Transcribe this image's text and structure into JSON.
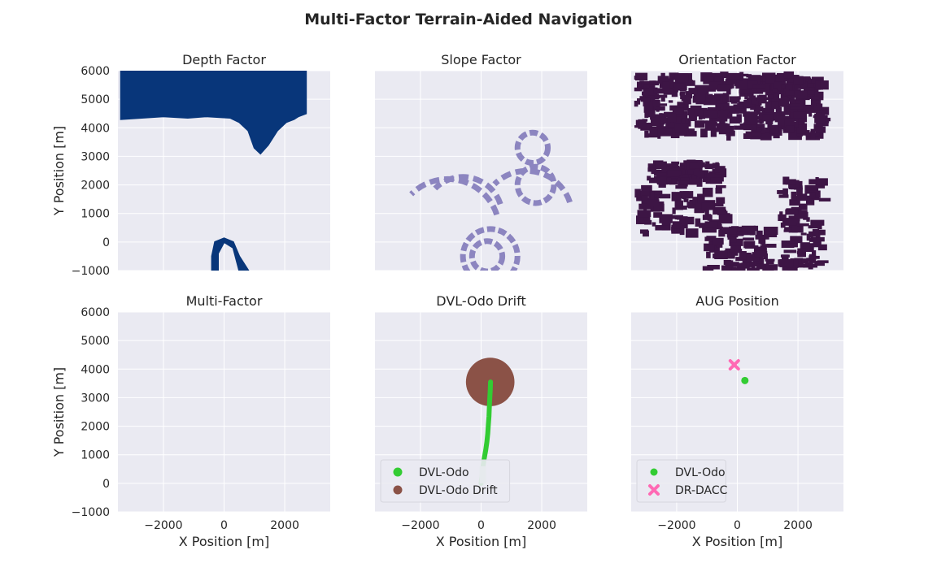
{
  "figure_title": "Multi-Factor Terrain-Aided Navigation",
  "colors": {
    "panel_bg": "#EAEAF2",
    "grid": "#FFFFFF",
    "depth": "#08367A",
    "slope": "#8C85C0",
    "orientation": "#3D1545",
    "dvl_odo": "#33CC33",
    "drift": "#8B5247",
    "dr_dacc": "#FF69B4"
  },
  "axes": {
    "xlabel": "X Position [m]",
    "ylabel": "Y Position [m]",
    "xticks": [
      -2000,
      0,
      2000
    ],
    "xtick_labels": [
      "−2000",
      "0",
      "2000"
    ],
    "yticks": [
      -1000,
      0,
      1000,
      2000,
      3000,
      4000,
      5000,
      6000
    ],
    "ytick_labels": [
      "−1000",
      "0",
      "1000",
      "2000",
      "3000",
      "4000",
      "5000",
      "6000"
    ],
    "xlim": [
      -3500,
      3500
    ],
    "ylim": [
      -1000,
      6000
    ]
  },
  "chart_data": [
    {
      "type": "heatmap",
      "title": "Depth Factor",
      "regions": [
        {
          "label": "north-plateau",
          "polygon": [
            [
              -3400,
              6000
            ],
            [
              2700,
              6000
            ],
            [
              2700,
              4500
            ],
            [
              2450,
              4400
            ],
            [
              2300,
              4300
            ],
            [
              2050,
              4200
            ],
            [
              1750,
              3900
            ],
            [
              1450,
              3400
            ],
            [
              1200,
              3100
            ],
            [
              1000,
              3300
            ],
            [
              800,
              3900
            ],
            [
              500,
              4200
            ],
            [
              200,
              4350
            ],
            [
              -600,
              4400
            ],
            [
              -1200,
              4350
            ],
            [
              -2000,
              4400
            ],
            [
              -3400,
              4300
            ]
          ]
        },
        {
          "label": "south-ring",
          "polygon": [
            [
              -400,
              -1000
            ],
            [
              -400,
              -500
            ],
            [
              -300,
              0
            ],
            [
              0,
              130
            ],
            [
              300,
              0
            ],
            [
              500,
              -500
            ],
            [
              800,
              -1000
            ],
            [
              500,
              -1000
            ],
            [
              300,
              -200
            ],
            [
              0,
              0
            ],
            [
              -200,
              -400
            ],
            [
              -200,
              -1000
            ]
          ]
        }
      ]
    },
    {
      "type": "heatmap",
      "title": "Slope Factor",
      "features": [
        {
          "label": "ring",
          "cx": 1700,
          "cy": 3300,
          "r": 500
        },
        {
          "label": "ring",
          "cx": 1800,
          "cy": 2000,
          "r": 600
        },
        {
          "label": "ring",
          "cx": 300,
          "cy": -500,
          "r": 900
        },
        {
          "label": "ring",
          "cx": 200,
          "cy": -500,
          "r": 500
        },
        {
          "label": "arc",
          "cx": -600,
          "cy": 900,
          "r": 1300
        },
        {
          "label": "arc",
          "cx": -1100,
          "cy": 400,
          "r": 1700
        },
        {
          "label": "arc",
          "cx": 1500,
          "cy": 900,
          "r": 1500
        }
      ]
    },
    {
      "type": "heatmap",
      "title": "Orientation Factor",
      "regions": [
        {
          "label": "north-band",
          "x": [
            -3400,
            2700
          ],
          "y": [
            3800,
            6000
          ]
        },
        {
          "label": "west-ridge",
          "x": [
            -3000,
            -700
          ],
          "y": [
            2200,
            2900
          ]
        },
        {
          "label": "west-cluster",
          "x": [
            -3400,
            -500
          ],
          "y": [
            400,
            2000
          ]
        },
        {
          "label": "south-cluster",
          "x": [
            -1200,
            1000
          ],
          "y": [
            -900,
            600
          ]
        },
        {
          "label": "south-east-cluster",
          "x": [
            1300,
            2700
          ],
          "y": [
            -800,
            2300
          ]
        }
      ]
    },
    {
      "type": "scatter",
      "title": "Multi-Factor",
      "series": []
    },
    {
      "type": "scatter",
      "title": "DVL-Odo Drift",
      "legend": "lower-left",
      "series": [
        {
          "name": "DVL-Odo",
          "color": "#33CC33",
          "points": [
            [
              0,
              0
            ],
            [
              30,
              250
            ],
            [
              60,
              550
            ],
            [
              100,
              850
            ],
            [
              150,
              1150
            ],
            [
              190,
              1450
            ],
            [
              220,
              1750
            ],
            [
              240,
              2050
            ],
            [
              260,
              2350
            ],
            [
              270,
              2650
            ],
            [
              285,
              2950
            ],
            [
              300,
              3250
            ],
            [
              310,
              3550
            ]
          ]
        },
        {
          "name": "DVL-Odo Drift",
          "color": "#8B5247",
          "points": [
            [
              300,
              3550
            ]
          ],
          "radius": 800
        }
      ]
    },
    {
      "type": "scatter",
      "title": "AUG Position",
      "legend": "lower-left",
      "series": [
        {
          "name": "DVL-Odo",
          "color": "#33CC33",
          "marker": "circle",
          "points": [
            [
              250,
              3600
            ]
          ]
        },
        {
          "name": "DR-DACC",
          "color": "#FF69B4",
          "marker": "x",
          "points": [
            [
              -100,
              4150
            ]
          ]
        }
      ]
    }
  ]
}
